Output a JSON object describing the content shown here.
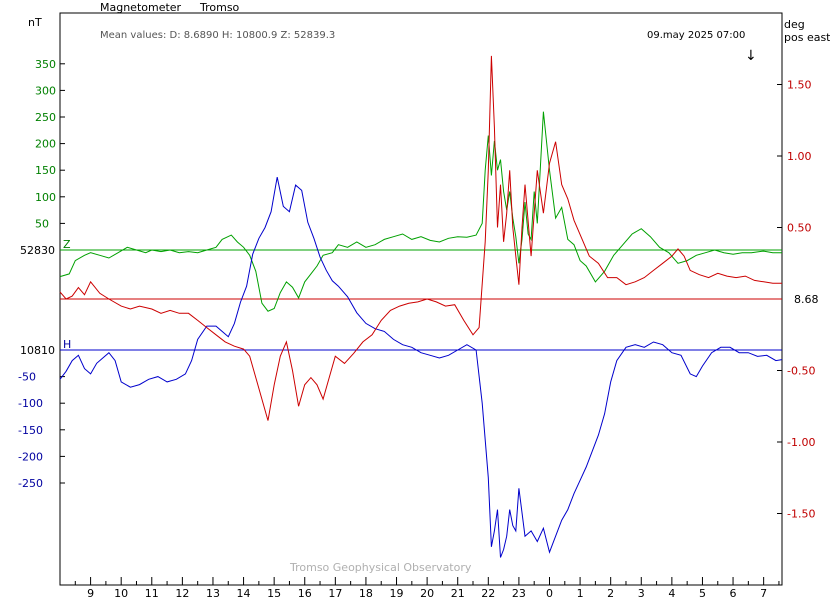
{
  "chart_data": {
    "type": "line",
    "title": "Magnetometer",
    "station": "Tromso",
    "mean_values": "Mean values:  D: 8.6890    H: 10800.9    Z: 52839.3",
    "timestamp": "09.may 2025 07:00",
    "arrow_glyph": "↓",
    "footer": "Tromso Geophysical Observatory",
    "left_unit": "nT",
    "right_unit_1": "deg",
    "right_unit_2": "pos east",
    "x_ticks": [
      "9",
      "10",
      "11",
      "12",
      "13",
      "14",
      "15",
      "16",
      "17",
      "18",
      "19",
      "20",
      "21",
      "22",
      "23",
      "0",
      "1",
      "2",
      "3",
      "4",
      "5",
      "6",
      "7"
    ],
    "x_range_hours": [
      8.0,
      7.6
    ],
    "z_ticks": {
      "color": "#008000",
      "values": [
        350,
        300,
        250,
        200,
        150,
        100,
        50
      ],
      "baseline_label": "52830",
      "baseline_letter": "Z",
      "baseline": 0
    },
    "h_ticks": {
      "color": "#0000a0",
      "values": [
        -50,
        -100,
        -150,
        -200,
        -250
      ],
      "baseline_label": "10810",
      "baseline_letter": "H",
      "baseline": 0
    },
    "d_ticks": {
      "color": "#c00000",
      "values": [
        1.5,
        1.0,
        0.5,
        -0.5,
        -1.0,
        -1.5
      ],
      "labels": [
        "1.50",
        "1.00",
        "0.50",
        "-0.50",
        "-1.00",
        "-1.50"
      ],
      "baseline_label": "8.68",
      "baseline": 0
    },
    "series": [
      {
        "key": "Z",
        "color": "#00a000",
        "values": [
          [
            8.0,
            -50
          ],
          [
            8.3,
            -45
          ],
          [
            8.5,
            -20
          ],
          [
            8.8,
            -10
          ],
          [
            9.0,
            -5
          ],
          [
            9.3,
            -10
          ],
          [
            9.6,
            -15
          ],
          [
            9.9,
            -5
          ],
          [
            10.2,
            5
          ],
          [
            10.5,
            0
          ],
          [
            10.8,
            -5
          ],
          [
            11.0,
            0
          ],
          [
            11.3,
            -3
          ],
          [
            11.6,
            0
          ],
          [
            11.9,
            -5
          ],
          [
            12.2,
            -3
          ],
          [
            12.5,
            -5
          ],
          [
            12.8,
            0
          ],
          [
            13.1,
            5
          ],
          [
            13.3,
            20
          ],
          [
            13.6,
            28
          ],
          [
            13.8,
            15
          ],
          [
            14.0,
            5
          ],
          [
            14.2,
            -10
          ],
          [
            14.4,
            -40
          ],
          [
            14.6,
            -100
          ],
          [
            14.8,
            -115
          ],
          [
            15.0,
            -110
          ],
          [
            15.2,
            -80
          ],
          [
            15.4,
            -60
          ],
          [
            15.6,
            -70
          ],
          [
            15.8,
            -90
          ],
          [
            16.0,
            -60
          ],
          [
            16.2,
            -45
          ],
          [
            16.4,
            -30
          ],
          [
            16.6,
            -10
          ],
          [
            16.9,
            -5
          ],
          [
            17.1,
            10
          ],
          [
            17.4,
            5
          ],
          [
            17.7,
            15
          ],
          [
            18.0,
            5
          ],
          [
            18.3,
            10
          ],
          [
            18.6,
            20
          ],
          [
            18.9,
            25
          ],
          [
            19.2,
            30
          ],
          [
            19.5,
            20
          ],
          [
            19.8,
            25
          ],
          [
            20.1,
            18
          ],
          [
            20.4,
            15
          ],
          [
            20.7,
            22
          ],
          [
            21.0,
            25
          ],
          [
            21.3,
            24
          ],
          [
            21.6,
            28
          ],
          [
            21.8,
            50
          ],
          [
            21.9,
            150
          ],
          [
            22.0,
            215
          ],
          [
            22.1,
            140
          ],
          [
            22.2,
            205
          ],
          [
            22.3,
            150
          ],
          [
            22.4,
            170
          ],
          [
            22.5,
            110
          ],
          [
            22.6,
            75
          ],
          [
            22.7,
            110
          ],
          [
            22.8,
            60
          ],
          [
            22.9,
            25
          ],
          [
            23.0,
            -25
          ],
          [
            23.1,
            20
          ],
          [
            23.2,
            90
          ],
          [
            23.3,
            30
          ],
          [
            23.4,
            20
          ],
          [
            23.5,
            110
          ],
          [
            23.6,
            50
          ],
          [
            23.8,
            260
          ],
          [
            24.0,
            150
          ],
          [
            24.2,
            60
          ],
          [
            24.4,
            80
          ],
          [
            24.6,
            20
          ],
          [
            24.8,
            10
          ],
          [
            25.0,
            -20
          ],
          [
            25.2,
            -30
          ],
          [
            25.5,
            -60
          ],
          [
            25.8,
            -40
          ],
          [
            26.1,
            -10
          ],
          [
            26.4,
            10
          ],
          [
            26.7,
            30
          ],
          [
            27.0,
            40
          ],
          [
            27.3,
            25
          ],
          [
            27.6,
            5
          ],
          [
            27.9,
            -5
          ],
          [
            28.2,
            -25
          ],
          [
            28.5,
            -20
          ],
          [
            28.8,
            -10
          ],
          [
            29.1,
            -5
          ],
          [
            29.4,
            0
          ],
          [
            29.7,
            -5
          ],
          [
            30.0,
            -8
          ],
          [
            30.3,
            -5
          ],
          [
            30.6,
            -5
          ],
          [
            31.0,
            -2
          ],
          [
            31.3,
            -5
          ],
          [
            31.6,
            -5
          ]
        ]
      },
      {
        "key": "H",
        "color": "#0000cc",
        "values": [
          [
            8.0,
            -55
          ],
          [
            8.2,
            -40
          ],
          [
            8.4,
            -20
          ],
          [
            8.6,
            -10
          ],
          [
            8.8,
            -35
          ],
          [
            9.0,
            -45
          ],
          [
            9.2,
            -25
          ],
          [
            9.4,
            -15
          ],
          [
            9.6,
            -5
          ],
          [
            9.8,
            -20
          ],
          [
            10.0,
            -60
          ],
          [
            10.3,
            -70
          ],
          [
            10.6,
            -65
          ],
          [
            10.9,
            -55
          ],
          [
            11.2,
            -50
          ],
          [
            11.5,
            -60
          ],
          [
            11.8,
            -55
          ],
          [
            12.1,
            -45
          ],
          [
            12.3,
            -20
          ],
          [
            12.5,
            20
          ],
          [
            12.8,
            45
          ],
          [
            13.1,
            45
          ],
          [
            13.3,
            35
          ],
          [
            13.5,
            25
          ],
          [
            13.7,
            50
          ],
          [
            13.9,
            90
          ],
          [
            14.1,
            120
          ],
          [
            14.3,
            180
          ],
          [
            14.5,
            210
          ],
          [
            14.7,
            230
          ],
          [
            14.9,
            260
          ],
          [
            15.1,
            325
          ],
          [
            15.3,
            270
          ],
          [
            15.5,
            260
          ],
          [
            15.7,
            310
          ],
          [
            15.9,
            300
          ],
          [
            16.1,
            240
          ],
          [
            16.3,
            210
          ],
          [
            16.5,
            175
          ],
          [
            16.7,
            150
          ],
          [
            16.9,
            130
          ],
          [
            17.1,
            120
          ],
          [
            17.4,
            100
          ],
          [
            17.7,
            70
          ],
          [
            18.0,
            50
          ],
          [
            18.3,
            40
          ],
          [
            18.6,
            35
          ],
          [
            18.9,
            20
          ],
          [
            19.2,
            10
          ],
          [
            19.5,
            5
          ],
          [
            19.8,
            -5
          ],
          [
            20.1,
            -10
          ],
          [
            20.4,
            -15
          ],
          [
            20.7,
            -10
          ],
          [
            21.0,
            0
          ],
          [
            21.3,
            10
          ],
          [
            21.6,
            0
          ],
          [
            21.8,
            -100
          ],
          [
            22.0,
            -240
          ],
          [
            22.1,
            -370
          ],
          [
            22.2,
            -340
          ],
          [
            22.3,
            -300
          ],
          [
            22.4,
            -390
          ],
          [
            22.5,
            -375
          ],
          [
            22.6,
            -350
          ],
          [
            22.7,
            -300
          ],
          [
            22.8,
            -330
          ],
          [
            22.9,
            -340
          ],
          [
            23.0,
            -260
          ],
          [
            23.2,
            -350
          ],
          [
            23.4,
            -340
          ],
          [
            23.6,
            -360
          ],
          [
            23.8,
            -335
          ],
          [
            24.0,
            -380
          ],
          [
            24.2,
            -350
          ],
          [
            24.4,
            -320
          ],
          [
            24.6,
            -300
          ],
          [
            24.8,
            -270
          ],
          [
            25.0,
            -245
          ],
          [
            25.2,
            -220
          ],
          [
            25.4,
            -190
          ],
          [
            25.6,
            -160
          ],
          [
            25.8,
            -120
          ],
          [
            26.0,
            -60
          ],
          [
            26.2,
            -20
          ],
          [
            26.5,
            5
          ],
          [
            26.8,
            10
          ],
          [
            27.1,
            5
          ],
          [
            27.4,
            15
          ],
          [
            27.7,
            10
          ],
          [
            28.0,
            -5
          ],
          [
            28.3,
            -10
          ],
          [
            28.6,
            -45
          ],
          [
            28.8,
            -50
          ],
          [
            29.0,
            -30
          ],
          [
            29.3,
            -5
          ],
          [
            29.6,
            5
          ],
          [
            29.9,
            5
          ],
          [
            30.2,
            -5
          ],
          [
            30.5,
            -5
          ],
          [
            30.8,
            -12
          ],
          [
            31.1,
            -10
          ],
          [
            31.4,
            -20
          ],
          [
            31.6,
            -18
          ]
        ]
      },
      {
        "key": "D",
        "color": "#cc0000",
        "values": [
          [
            8.0,
            0.05
          ],
          [
            8.2,
            0.0
          ],
          [
            8.4,
            0.02
          ],
          [
            8.6,
            0.08
          ],
          [
            8.8,
            0.03
          ],
          [
            9.0,
            0.12
          ],
          [
            9.3,
            0.04
          ],
          [
            9.6,
            0.0
          ],
          [
            10.0,
            -0.05
          ],
          [
            10.3,
            -0.07
          ],
          [
            10.6,
            -0.05
          ],
          [
            11.0,
            -0.07
          ],
          [
            11.3,
            -0.1
          ],
          [
            11.6,
            -0.08
          ],
          [
            11.9,
            -0.1
          ],
          [
            12.2,
            -0.1
          ],
          [
            12.5,
            -0.15
          ],
          [
            12.8,
            -0.2
          ],
          [
            13.1,
            -0.25
          ],
          [
            13.4,
            -0.3
          ],
          [
            13.7,
            -0.33
          ],
          [
            14.0,
            -0.35
          ],
          [
            14.2,
            -0.4
          ],
          [
            14.4,
            -0.55
          ],
          [
            14.6,
            -0.7
          ],
          [
            14.8,
            -0.85
          ],
          [
            15.0,
            -0.6
          ],
          [
            15.2,
            -0.4
          ],
          [
            15.4,
            -0.3
          ],
          [
            15.6,
            -0.5
          ],
          [
            15.8,
            -0.75
          ],
          [
            16.0,
            -0.6
          ],
          [
            16.2,
            -0.55
          ],
          [
            16.4,
            -0.6
          ],
          [
            16.6,
            -0.7
          ],
          [
            16.8,
            -0.55
          ],
          [
            17.0,
            -0.4
          ],
          [
            17.3,
            -0.45
          ],
          [
            17.6,
            -0.38
          ],
          [
            17.9,
            -0.3
          ],
          [
            18.2,
            -0.25
          ],
          [
            18.5,
            -0.15
          ],
          [
            18.8,
            -0.08
          ],
          [
            19.1,
            -0.05
          ],
          [
            19.4,
            -0.03
          ],
          [
            19.7,
            -0.02
          ],
          [
            20.0,
            0.0
          ],
          [
            20.3,
            -0.02
          ],
          [
            20.6,
            -0.05
          ],
          [
            20.9,
            -0.04
          ],
          [
            21.2,
            -0.15
          ],
          [
            21.5,
            -0.25
          ],
          [
            21.7,
            -0.2
          ],
          [
            21.9,
            0.4
          ],
          [
            22.0,
            0.9
          ],
          [
            22.1,
            1.7
          ],
          [
            22.2,
            1.2
          ],
          [
            22.3,
            0.5
          ],
          [
            22.4,
            0.8
          ],
          [
            22.5,
            0.4
          ],
          [
            22.6,
            0.6
          ],
          [
            22.7,
            0.9
          ],
          [
            22.8,
            0.5
          ],
          [
            22.9,
            0.3
          ],
          [
            23.0,
            0.1
          ],
          [
            23.1,
            0.5
          ],
          [
            23.2,
            0.8
          ],
          [
            23.4,
            0.3
          ],
          [
            23.6,
            0.9
          ],
          [
            23.8,
            0.6
          ],
          [
            24.0,
            0.95
          ],
          [
            24.2,
            1.1
          ],
          [
            24.4,
            0.8
          ],
          [
            24.6,
            0.7
          ],
          [
            24.8,
            0.55
          ],
          [
            25.0,
            0.45
          ],
          [
            25.3,
            0.3
          ],
          [
            25.6,
            0.25
          ],
          [
            25.9,
            0.15
          ],
          [
            26.2,
            0.15
          ],
          [
            26.5,
            0.1
          ],
          [
            26.8,
            0.12
          ],
          [
            27.1,
            0.15
          ],
          [
            27.4,
            0.2
          ],
          [
            27.7,
            0.25
          ],
          [
            28.0,
            0.3
          ],
          [
            28.2,
            0.35
          ],
          [
            28.4,
            0.3
          ],
          [
            28.6,
            0.2
          ],
          [
            28.9,
            0.17
          ],
          [
            29.2,
            0.15
          ],
          [
            29.5,
            0.18
          ],
          [
            29.8,
            0.16
          ],
          [
            30.1,
            0.15
          ],
          [
            30.4,
            0.16
          ],
          [
            30.7,
            0.13
          ],
          [
            31.0,
            0.12
          ],
          [
            31.3,
            0.11
          ],
          [
            31.6,
            0.11
          ]
        ]
      }
    ]
  }
}
